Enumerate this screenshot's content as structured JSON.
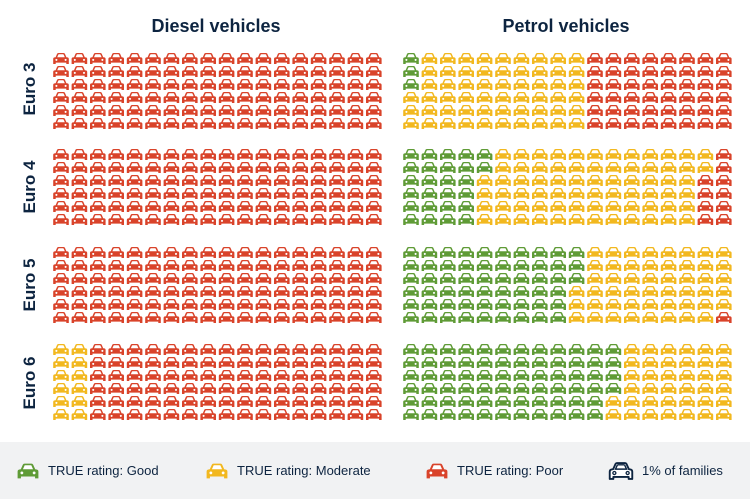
{
  "chart_data": {
    "type": "pictogram",
    "unit_description": "Each car icon represents 1% of families",
    "rows_per_grid": 6,
    "cols_per_grid": 18,
    "columns": [
      {
        "key": "diesel",
        "title": "Diesel vehicles"
      },
      {
        "key": "petrol",
        "title": "Petrol vehicles"
      }
    ],
    "row_groups": [
      "Euro 3",
      "Euro 4",
      "Euro 5",
      "Euro 6"
    ],
    "categories": [
      "Good",
      "Moderate",
      "Poor"
    ],
    "grids": {
      "diesel": [
        {
          "euro": "Euro 3",
          "good": 0,
          "moderate": 0,
          "poor": 108
        },
        {
          "euro": "Euro 4",
          "good": 0,
          "moderate": 0,
          "poor": 108
        },
        {
          "euro": "Euro 5",
          "good": 0,
          "moderate": 0,
          "poor": 108
        },
        {
          "euro": "Euro 6",
          "good": 0,
          "moderate": 12,
          "poor": 96
        }
      ],
      "petrol": [
        {
          "euro": "Euro 3",
          "good": 3,
          "moderate": 57,
          "poor": 48
        },
        {
          "euro": "Euro 4",
          "good": 26,
          "moderate": 72,
          "poor": 10
        },
        {
          "euro": "Euro 5",
          "good": 57,
          "moderate": 50,
          "poor": 1
        },
        {
          "euro": "Euro 6",
          "good": 70,
          "moderate": 38,
          "poor": 0
        }
      ]
    }
  },
  "colors": {
    "good": "#5f9b36",
    "moderate": "#f2b81f",
    "poor": "#d9432a",
    "outline": "#0d2440",
    "legend_bg": "#f1f2f3"
  },
  "legend": {
    "good": {
      "label": "TRUE rating: Good",
      "icon": "car-icon-green"
    },
    "moderate": {
      "label": "TRUE rating: Moderate",
      "icon": "car-icon-yellow"
    },
    "poor": {
      "label": "TRUE rating: Poor",
      "icon": "car-icon-red"
    },
    "unit": {
      "label": "1% of families",
      "icon": "car-icon-outline"
    }
  }
}
